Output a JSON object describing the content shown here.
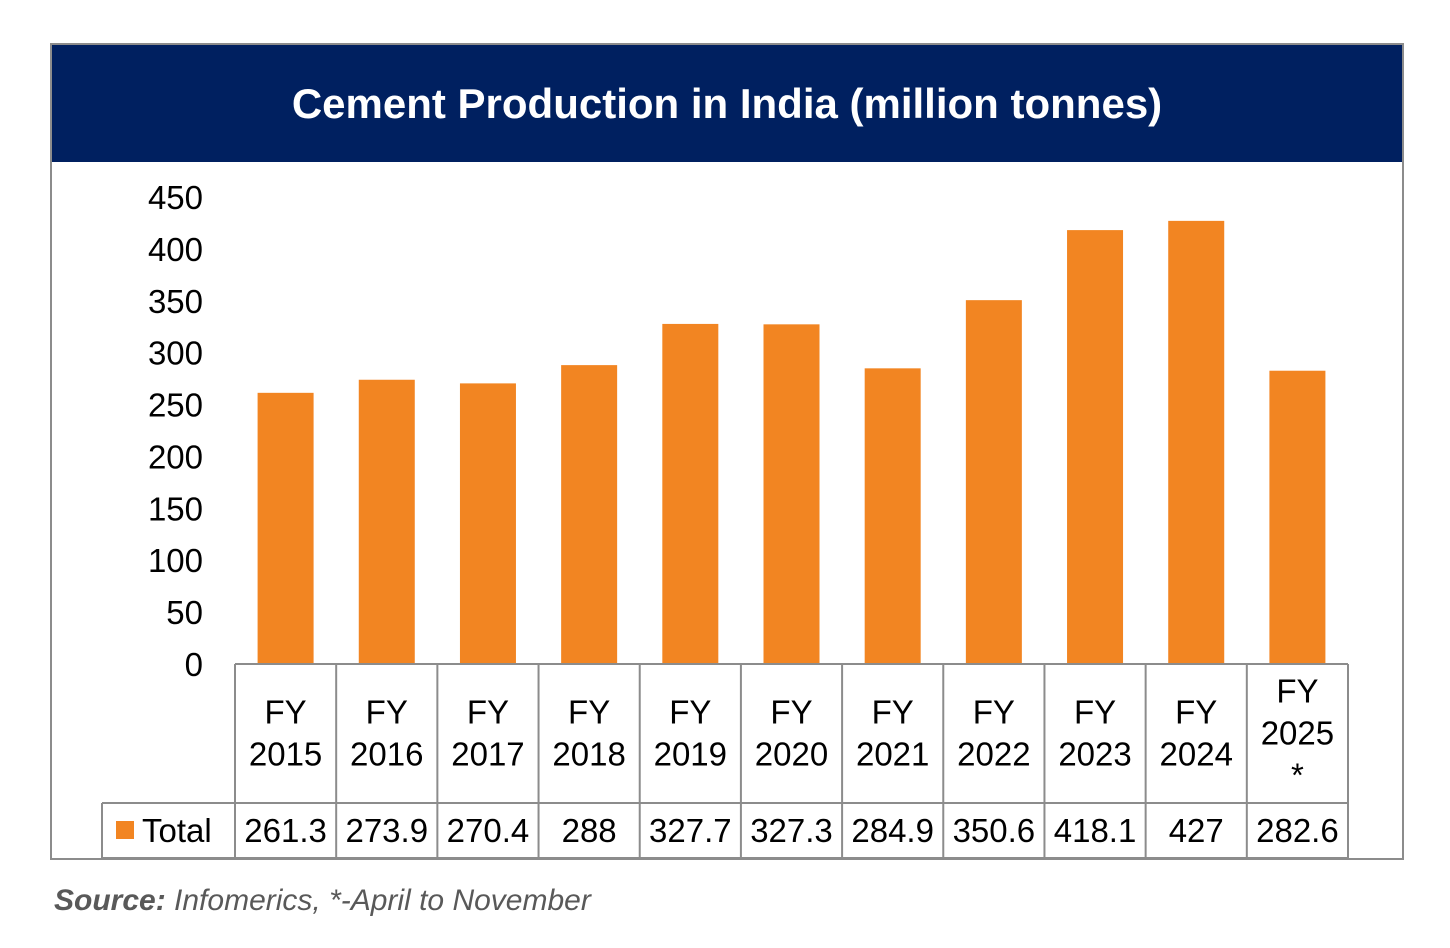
{
  "chart_data": {
    "type": "bar",
    "title": "Cement Production in India (million tonnes)",
    "categories": [
      "FY 2015",
      "FY 2016",
      "FY 2017",
      "FY 2018",
      "FY 2019",
      "FY 2020",
      "FY 2021",
      "FY 2022",
      "FY 2023",
      "FY 2024",
      "FY 2025 *"
    ],
    "category_lines": [
      [
        "FY",
        "2015"
      ],
      [
        "FY",
        "2016"
      ],
      [
        "FY",
        "2017"
      ],
      [
        "FY",
        "2018"
      ],
      [
        "FY",
        "2019"
      ],
      [
        "FY",
        "2020"
      ],
      [
        "FY",
        "2021"
      ],
      [
        "FY",
        "2022"
      ],
      [
        "FY",
        "2023"
      ],
      [
        "FY",
        "2024"
      ],
      [
        "FY",
        "2025",
        "*"
      ]
    ],
    "series": [
      {
        "name": "Total",
        "values": [
          261.3,
          273.9,
          270.4,
          288,
          327.7,
          327.3,
          284.9,
          350.6,
          418.1,
          427,
          282.6
        ],
        "color": "#F28522"
      }
    ],
    "value_labels": [
      "261.3",
      "273.9",
      "270.4",
      "288",
      "327.7",
      "327.3",
      "284.9",
      "350.6",
      "418.1",
      "427",
      "282.6"
    ],
    "yticks": [
      "0",
      "50",
      "100",
      "150",
      "200",
      "250",
      "300",
      "350",
      "400",
      "450"
    ],
    "ylim": [
      0,
      450
    ],
    "legend": "data-table",
    "grid": false
  },
  "colors": {
    "title_background": "#002060",
    "title_text": "#FFFFFF",
    "bar": "#F28522",
    "table_border": "#8c8c8c"
  },
  "source": {
    "label": "Source:",
    "text": " Infomerics, *-April to November"
  }
}
